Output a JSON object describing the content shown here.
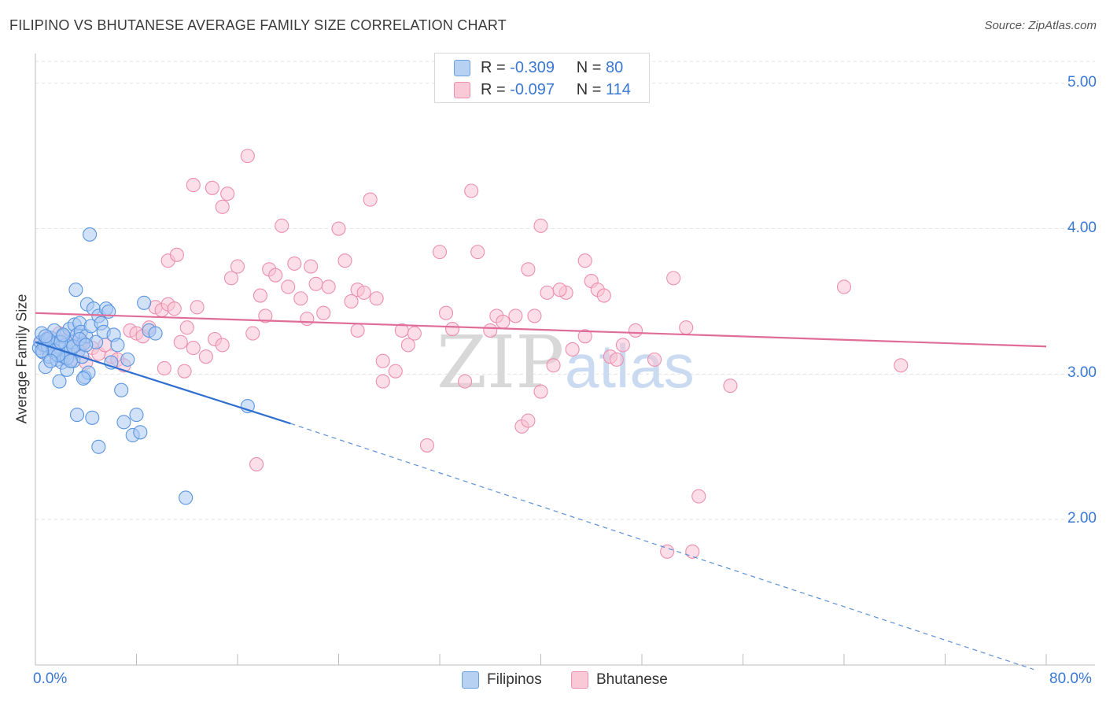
{
  "chart_data": {
    "type": "scatter",
    "title": "FILIPINO VS BHUTANESE AVERAGE FAMILY SIZE CORRELATION CHART",
    "source": "Source: ZipAtlas.com",
    "xlabel": "",
    "ylabel": "Average Family Size",
    "xlim": [
      0,
      80
    ],
    "ylim": [
      1.0,
      5.15
    ],
    "x_tick_labels": [
      "0.0%",
      "80.0%"
    ],
    "y_ticks": [
      {
        "value": 2.0,
        "label": "2.00"
      },
      {
        "value": 3.0,
        "label": "3.00"
      },
      {
        "value": 4.0,
        "label": "4.00"
      },
      {
        "value": 5.0,
        "label": "5.00"
      }
    ],
    "watermark": {
      "part1": "ZIP",
      "part2": "atlas"
    },
    "legend": [
      {
        "r_label": "R =",
        "r_value": "-0.309",
        "n_label": "N =",
        "n_value": "80"
      },
      {
        "r_label": "R =",
        "r_value": "-0.097",
        "n_label": "N =",
        "n_value": "114"
      }
    ],
    "series": [
      {
        "name": "Filipinos",
        "color": "#5b96e0",
        "fill": "#a9c8f2",
        "trend": {
          "x0": 0,
          "y0": 3.22,
          "x1": 20.2,
          "y1": 2.66,
          "dash_to_x": 79,
          "dash_to_y": 0.97
        },
        "points": [
          [
            0.3,
            3.18
          ],
          [
            0.4,
            3.22
          ],
          [
            0.5,
            3.28
          ],
          [
            0.6,
            3.15
          ],
          [
            0.7,
            3.2
          ],
          [
            0.8,
            3.05
          ],
          [
            0.9,
            3.24
          ],
          [
            1.0,
            3.19
          ],
          [
            1.1,
            3.12
          ],
          [
            1.2,
            3.25
          ],
          [
            1.3,
            3.21
          ],
          [
            1.4,
            3.17
          ],
          [
            1.5,
            3.3
          ],
          [
            1.6,
            3.14
          ],
          [
            1.7,
            3.1
          ],
          [
            1.8,
            3.22
          ],
          [
            1.9,
            2.95
          ],
          [
            2.0,
            3.18
          ],
          [
            2.1,
            3.08
          ],
          [
            2.2,
            3.26
          ],
          [
            2.3,
            3.12
          ],
          [
            2.4,
            3.2
          ],
          [
            2.5,
            3.03
          ],
          [
            2.6,
            3.15
          ],
          [
            2.7,
            3.31
          ],
          [
            2.8,
            3.18
          ],
          [
            2.9,
            3.22
          ],
          [
            3.0,
            3.09
          ],
          [
            3.1,
            3.34
          ],
          [
            3.2,
            3.58
          ],
          [
            3.3,
            3.27
          ],
          [
            3.4,
            3.16
          ],
          [
            3.5,
            3.35
          ],
          [
            3.6,
            3.29
          ],
          [
            3.7,
            3.12
          ],
          [
            3.8,
            3.21
          ],
          [
            3.9,
            2.98
          ],
          [
            4.0,
            3.26
          ],
          [
            4.1,
            3.48
          ],
          [
            4.2,
            3.01
          ],
          [
            4.3,
            3.96
          ],
          [
            4.4,
            3.33
          ],
          [
            4.6,
            3.45
          ],
          [
            4.8,
            3.22
          ],
          [
            5.0,
            3.4
          ],
          [
            5.2,
            3.35
          ],
          [
            5.4,
            3.29
          ],
          [
            5.6,
            3.45
          ],
          [
            5.8,
            3.43
          ],
          [
            6.0,
            3.08
          ],
          [
            6.2,
            3.27
          ],
          [
            6.5,
            3.2
          ],
          [
            6.8,
            2.89
          ],
          [
            7.0,
            2.67
          ],
          [
            7.3,
            3.1
          ],
          [
            7.7,
            2.58
          ],
          [
            8.0,
            2.72
          ],
          [
            8.3,
            2.6
          ],
          [
            8.6,
            3.49
          ],
          [
            9.0,
            3.3
          ],
          [
            9.5,
            3.28
          ],
          [
            1.5,
            3.16
          ],
          [
            2.0,
            3.22
          ],
          [
            2.5,
            3.11
          ],
          [
            3.0,
            3.19
          ],
          [
            3.5,
            3.24
          ],
          [
            1.0,
            3.24
          ],
          [
            0.5,
            3.16
          ],
          [
            1.8,
            3.13
          ],
          [
            2.8,
            3.09
          ],
          [
            3.8,
            2.97
          ],
          [
            4.5,
            2.7
          ],
          [
            5.0,
            2.5
          ],
          [
            2.2,
            3.27
          ],
          [
            1.2,
            3.09
          ],
          [
            0.8,
            3.26
          ],
          [
            11.9,
            2.15
          ],
          [
            16.8,
            2.78
          ],
          [
            4.0,
            3.2
          ],
          [
            3.3,
            2.72
          ]
        ]
      },
      {
        "name": "Bhutanese",
        "color": "#ec8fae",
        "fill": "#f7c3d4",
        "trend": {
          "x0": 0,
          "y0": 3.42,
          "x1": 80,
          "y1": 3.19
        },
        "points": [
          [
            0.5,
            3.22
          ],
          [
            0.8,
            3.18
          ],
          [
            1.0,
            3.25
          ],
          [
            1.3,
            3.2
          ],
          [
            1.6,
            3.15
          ],
          [
            1.9,
            3.28
          ],
          [
            2.2,
            3.12
          ],
          [
            2.5,
            3.24
          ],
          [
            2.8,
            3.1
          ],
          [
            3.1,
            3.2
          ],
          [
            3.4,
            3.16
          ],
          [
            3.7,
            3.22
          ],
          [
            4.0,
            3.08
          ],
          [
            4.5,
            3.18
          ],
          [
            5.0,
            3.14
          ],
          [
            5.5,
            3.2
          ],
          [
            6.0,
            3.12
          ],
          [
            6.5,
            3.1
          ],
          [
            7.0,
            3.06
          ],
          [
            7.5,
            3.3
          ],
          [
            8.0,
            3.28
          ],
          [
            8.5,
            3.26
          ],
          [
            9.0,
            3.32
          ],
          [
            9.5,
            3.46
          ],
          [
            10.0,
            3.44
          ],
          [
            10.5,
            3.48
          ],
          [
            11.0,
            3.45
          ],
          [
            11.5,
            3.22
          ],
          [
            12.0,
            3.32
          ],
          [
            12.5,
            3.18
          ],
          [
            10.2,
            3.04
          ],
          [
            11.8,
            3.02
          ],
          [
            10.5,
            3.78
          ],
          [
            11.2,
            3.82
          ],
          [
            12.8,
            3.46
          ],
          [
            13.5,
            3.12
          ],
          [
            14.2,
            3.24
          ],
          [
            14.8,
            3.2
          ],
          [
            12.5,
            4.3
          ],
          [
            14.0,
            4.28
          ],
          [
            15.2,
            4.24
          ],
          [
            14.8,
            4.15
          ],
          [
            15.5,
            3.66
          ],
          [
            16.0,
            3.74
          ],
          [
            16.8,
            4.5
          ],
          [
            17.2,
            3.28
          ],
          [
            17.8,
            3.54
          ],
          [
            18.2,
            3.4
          ],
          [
            17.5,
            2.38
          ],
          [
            18.5,
            3.72
          ],
          [
            19.0,
            3.68
          ],
          [
            19.5,
            4.02
          ],
          [
            20.0,
            3.6
          ],
          [
            20.5,
            3.76
          ],
          [
            21.0,
            3.52
          ],
          [
            21.5,
            3.38
          ],
          [
            21.8,
            3.74
          ],
          [
            22.2,
            3.62
          ],
          [
            22.8,
            3.42
          ],
          [
            23.2,
            3.6
          ],
          [
            24.0,
            4.0
          ],
          [
            24.5,
            3.78
          ],
          [
            25.0,
            3.5
          ],
          [
            25.5,
            3.58
          ],
          [
            26.0,
            3.56
          ],
          [
            26.5,
            4.2
          ],
          [
            27.0,
            3.52
          ],
          [
            27.5,
            2.95
          ],
          [
            28.5,
            3.02
          ],
          [
            29.0,
            3.3
          ],
          [
            29.5,
            3.2
          ],
          [
            30.0,
            3.28
          ],
          [
            25.5,
            3.3
          ],
          [
            31.0,
            2.51
          ],
          [
            32.0,
            3.84
          ],
          [
            32.5,
            3.42
          ],
          [
            33.0,
            3.31
          ],
          [
            34.0,
            2.95
          ],
          [
            35.0,
            3.84
          ],
          [
            36.0,
            3.3
          ],
          [
            36.5,
            3.4
          ],
          [
            37.0,
            3.36
          ],
          [
            38.0,
            3.4
          ],
          [
            38.5,
            2.64
          ],
          [
            39.0,
            3.72
          ],
          [
            39.5,
            3.4
          ],
          [
            40.0,
            2.88
          ],
          [
            40.5,
            3.56
          ],
          [
            41.0,
            3.06
          ],
          [
            42.0,
            3.56
          ],
          [
            42.5,
            3.17
          ],
          [
            43.5,
            3.78
          ],
          [
            44.0,
            3.64
          ],
          [
            44.5,
            3.58
          ],
          [
            45.0,
            3.54
          ],
          [
            45.5,
            3.12
          ],
          [
            46.0,
            3.1
          ],
          [
            46.5,
            3.2
          ],
          [
            47.5,
            3.3
          ],
          [
            49.0,
            3.1
          ],
          [
            50.0,
            1.78
          ],
          [
            50.5,
            3.66
          ],
          [
            51.5,
            3.32
          ],
          [
            52.5,
            2.16
          ],
          [
            52.0,
            1.78
          ],
          [
            34.5,
            4.26
          ],
          [
            40.0,
            4.02
          ],
          [
            41.5,
            3.58
          ],
          [
            43.5,
            3.26
          ],
          [
            55.0,
            2.92
          ],
          [
            64.0,
            3.6
          ],
          [
            68.5,
            3.06
          ],
          [
            39.0,
            2.68
          ],
          [
            27.5,
            3.09
          ]
        ]
      }
    ]
  }
}
